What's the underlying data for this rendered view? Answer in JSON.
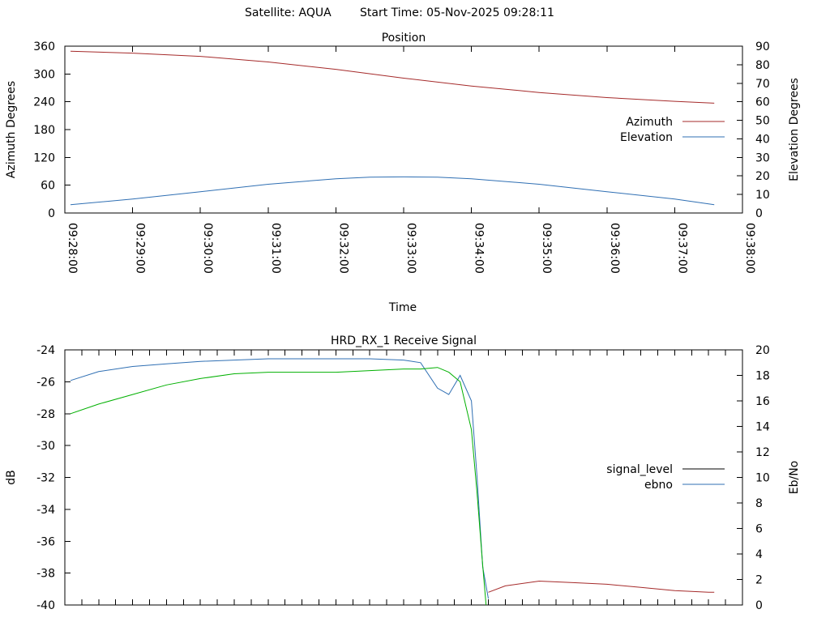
{
  "header": {
    "satellite": "Satellite: AQUA",
    "start_time": "Start Time: 05-Nov-2025 09:28:11"
  },
  "chart_data": [
    {
      "type": "line",
      "title": "Position",
      "xlabel": "Time",
      "ylabel": "Azimuth Degrees",
      "y2label": "Elevation Degrees",
      "xlim": [
        "09:28:00",
        "09:38:00"
      ],
      "xticks": [
        "09:28:00",
        "09:29:00",
        "09:30:00",
        "09:31:00",
        "09:32:00",
        "09:33:00",
        "09:34:00",
        "09:35:00",
        "09:36:00",
        "09:37:00",
        "09:38:00"
      ],
      "ylim": [
        0,
        360
      ],
      "yticks": [
        "0",
        "60",
        "120",
        "180",
        "240",
        "300",
        "360"
      ],
      "y2lim": [
        0,
        90
      ],
      "y2ticks": [
        "0",
        "10",
        "20",
        "30",
        "40",
        "50",
        "60",
        "70",
        "80",
        "90"
      ],
      "legend_position": "right",
      "grid": false,
      "series": [
        {
          "name": "Azimuth",
          "axis": "left",
          "color": "#a52a2a",
          "x": [
            "09:28:05",
            "09:29:00",
            "09:30:00",
            "09:31:00",
            "09:32:00",
            "09:33:00",
            "09:34:00",
            "09:35:00",
            "09:36:00",
            "09:37:00",
            "09:37:35"
          ],
          "values": [
            349,
            345,
            338,
            326,
            310,
            291,
            274,
            260,
            249,
            241,
            237
          ]
        },
        {
          "name": "Elevation",
          "axis": "right",
          "color": "#2f6fb3",
          "x": [
            "09:28:05",
            "09:29:00",
            "09:30:00",
            "09:31:00",
            "09:32:00",
            "09:32:30",
            "09:33:00",
            "09:33:30",
            "09:34:00",
            "09:35:00",
            "09:36:00",
            "09:37:00",
            "09:37:35"
          ],
          "values": [
            4.5,
            7.5,
            11.5,
            15.5,
            18.5,
            19.3,
            19.5,
            19.3,
            18.5,
            15.5,
            11.5,
            7.5,
            4.5
          ]
        }
      ]
    },
    {
      "type": "line",
      "title": "HRD_RX_1 Receive Signal",
      "xlabel": "",
      "ylabel": "dB",
      "y2label": "Eb/No",
      "xlim": [
        "09:28:00",
        "09:38:00"
      ],
      "ylim": [
        -40,
        -24
      ],
      "yticks": [
        "-40",
        "-38",
        "-36",
        "-34",
        "-32",
        "-30",
        "-28",
        "-26",
        "-24"
      ],
      "y2lim": [
        0,
        20
      ],
      "y2ticks": [
        "0",
        "2",
        "4",
        "6",
        "8",
        "10",
        "12",
        "14",
        "16",
        "18",
        "20"
      ],
      "legend_position": "right",
      "grid": false,
      "series": [
        {
          "name": "signal_level",
          "axis": "left",
          "color": "#000000",
          "x": [],
          "values": []
        },
        {
          "name": "ebno",
          "axis": "right",
          "color": "#2f6fb3",
          "x": [
            "09:28:05",
            "09:28:30",
            "09:29:00",
            "09:29:30",
            "09:30:00",
            "09:30:30",
            "09:31:00",
            "09:31:30",
            "09:32:00",
            "09:32:30",
            "09:33:00",
            "09:33:15",
            "09:33:30",
            "09:33:40",
            "09:33:50",
            "09:34:00",
            "09:34:05",
            "09:34:10",
            "09:34:15"
          ],
          "values": [
            17.6,
            18.3,
            18.7,
            18.9,
            19.1,
            19.2,
            19.3,
            19.3,
            19.3,
            19.3,
            19.2,
            19.0,
            17.0,
            16.5,
            18.0,
            16.0,
            10.0,
            3.0,
            0.5
          ]
        },
        {
          "color": "#00b000",
          "axis": "left",
          "x": [
            "09:28:05",
            "09:28:30",
            "09:29:00",
            "09:29:30",
            "09:30:00",
            "09:30:30",
            "09:31:00",
            "09:31:30",
            "09:32:00",
            "09:32:30",
            "09:33:00",
            "09:33:15",
            "09:33:30",
            "09:33:40",
            "09:33:50",
            "09:34:00",
            "09:34:05",
            "09:34:10",
            "09:34:13"
          ],
          "values": [
            -28.0,
            -27.4,
            -26.8,
            -26.2,
            -25.8,
            -25.5,
            -25.4,
            -25.4,
            -25.4,
            -25.3,
            -25.2,
            -25.2,
            -25.1,
            -25.4,
            -26.0,
            -29.0,
            -33.0,
            -37.5,
            -40.0
          ]
        },
        {
          "color": "#a52a2a",
          "axis": "left",
          "x": [
            "09:34:15",
            "09:34:30",
            "09:35:00",
            "09:35:30",
            "09:36:00",
            "09:36:30",
            "09:37:00",
            "09:37:30",
            "09:37:35"
          ],
          "values": [
            -39.2,
            -38.8,
            -38.5,
            -38.6,
            -38.7,
            -38.9,
            -39.1,
            -39.2,
            -39.2
          ]
        }
      ]
    }
  ]
}
